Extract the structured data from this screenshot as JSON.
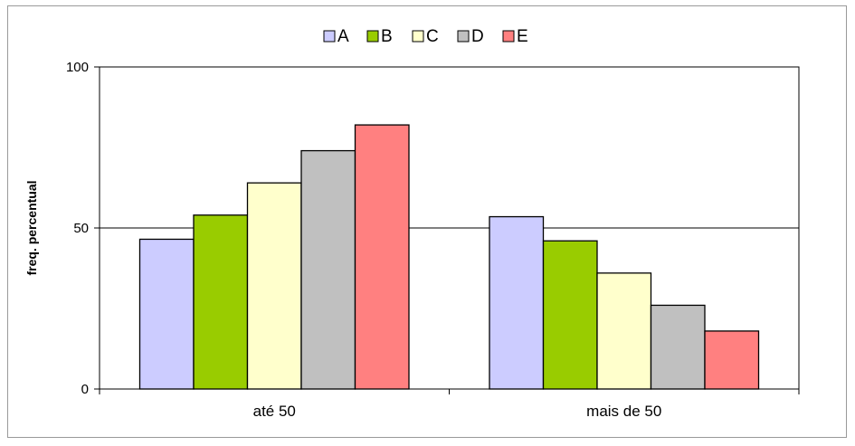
{
  "chart_data": {
    "type": "bar",
    "categories": [
      "até 50",
      "mais de 50"
    ],
    "series": [
      {
        "name": "A",
        "values": [
          46.5,
          53.5
        ],
        "color": "#ccccff"
      },
      {
        "name": "B",
        "values": [
          54,
          46
        ],
        "color": "#99cc00"
      },
      {
        "name": "C",
        "values": [
          64,
          36
        ],
        "color": "#ffffcc"
      },
      {
        "name": "D",
        "values": [
          74,
          26
        ],
        "color": "#c0c0c0"
      },
      {
        "name": "E",
        "values": [
          82,
          18
        ],
        "color": "#ff8080"
      }
    ],
    "ylabel": "freq. percentual",
    "ylim": [
      0,
      100
    ],
    "yticks": [
      "0",
      "50",
      "100"
    ],
    "grid": true,
    "legend_position": "top"
  }
}
